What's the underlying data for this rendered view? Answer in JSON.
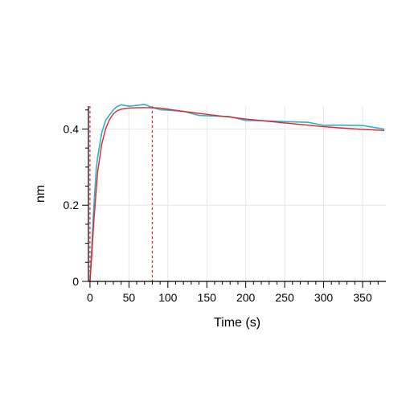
{
  "chart_data": {
    "type": "line",
    "xlabel": "Time (s)",
    "ylabel": "nm",
    "xlim": [
      -2,
      380
    ],
    "ylim": [
      0,
      0.46
    ],
    "x_ticks": [
      0,
      50,
      100,
      150,
      200,
      250,
      300,
      350
    ],
    "x_tick_labels": [
      "0",
      "50",
      "100",
      "150",
      "200",
      "250",
      "300",
      "350"
    ],
    "y_ticks": [
      0,
      0.2,
      0.4
    ],
    "y_tick_labels": [
      "0",
      "0.2",
      "0.4"
    ],
    "grid": true,
    "legend": "none",
    "dissociation_start_x": 80,
    "series": [
      {
        "role": "measured",
        "color": "#29b1c9",
        "x": [
          0,
          2,
          5,
          8,
          10,
          15,
          20,
          25,
          30,
          35,
          40,
          50,
          60,
          70,
          80,
          90,
          100,
          120,
          140,
          160,
          180,
          200,
          220,
          250,
          280,
          300,
          320,
          350,
          378
        ],
        "y": [
          0.0,
          0.08,
          0.2,
          0.29,
          0.33,
          0.39,
          0.42,
          0.44,
          0.452,
          0.458,
          0.46,
          0.462,
          0.462,
          0.462,
          0.46,
          0.452,
          0.448,
          0.443,
          0.438,
          0.434,
          0.43,
          0.426,
          0.423,
          0.418,
          0.414,
          0.412,
          0.41,
          0.407,
          0.403
        ]
      },
      {
        "role": "fit",
        "color": "#e0262b",
        "x": [
          0,
          2,
          5,
          8,
          10,
          15,
          20,
          25,
          30,
          35,
          40,
          50,
          60,
          70,
          80,
          90,
          100,
          120,
          140,
          160,
          180,
          200,
          220,
          250,
          280,
          300,
          320,
          350,
          378
        ],
        "y": [
          0.0,
          0.06,
          0.16,
          0.24,
          0.29,
          0.36,
          0.4,
          0.425,
          0.44,
          0.448,
          0.452,
          0.455,
          0.456,
          0.456,
          0.456,
          0.455,
          0.452,
          0.446,
          0.441,
          0.436,
          0.431,
          0.426,
          0.422,
          0.416,
          0.41,
          0.406,
          0.403,
          0.399,
          0.396
        ]
      }
    ]
  }
}
